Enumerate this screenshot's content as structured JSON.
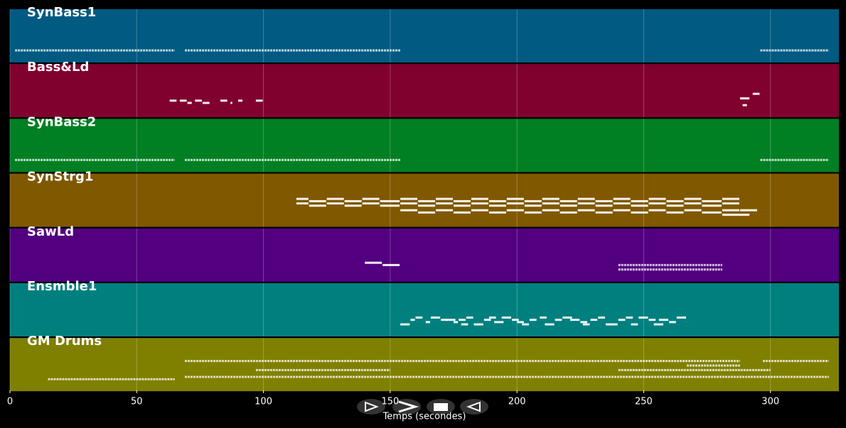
{
  "chart_data": {
    "type": "pianoroll",
    "xlabel": "Temps (secondes)",
    "xlim": [
      0,
      327
    ],
    "xticks": [
      0,
      50,
      100,
      150,
      200,
      250,
      300
    ],
    "grid": true,
    "tracks": [
      {
        "name": "SynBass1",
        "color": "#005a82",
        "runs": [
          [
            2,
            65,
            40
          ],
          [
            69,
            154,
            40
          ],
          [
            296,
            323,
            40
          ]
        ],
        "notes": []
      },
      {
        "name": "Bass&Ld",
        "color": "#80002e",
        "runs": [],
        "notes": [
          [
            63,
            66,
            50
          ],
          [
            67,
            70,
            50
          ],
          [
            70,
            72,
            49
          ],
          [
            73,
            76,
            50
          ],
          [
            76,
            79,
            49
          ],
          [
            83,
            86,
            50
          ],
          [
            87,
            88,
            49
          ],
          [
            90,
            92,
            50
          ],
          [
            97,
            100,
            50
          ],
          [
            288,
            292,
            51
          ],
          [
            289,
            291,
            48
          ],
          [
            293,
            296,
            53
          ]
        ]
      },
      {
        "name": "SynBass2",
        "color": "#007f23",
        "runs": [
          [
            2,
            65,
            40
          ],
          [
            69,
            154,
            40
          ],
          [
            296,
            323,
            40
          ]
        ],
        "notes": []
      },
      {
        "name": "SynStrg1",
        "color": "#805800",
        "runs": [],
        "notes": [
          [
            113,
            118,
            68,
            66
          ],
          [
            118,
            125,
            67,
            65
          ],
          [
            125,
            132,
            68,
            66
          ],
          [
            132,
            139,
            67,
            65
          ],
          [
            139,
            146,
            68,
            66
          ],
          [
            146,
            154,
            67,
            65
          ],
          [
            154,
            161,
            68,
            66,
            63
          ],
          [
            161,
            168,
            67,
            65,
            62
          ],
          [
            168,
            175,
            68,
            66,
            63
          ],
          [
            175,
            182,
            67,
            65,
            62
          ],
          [
            182,
            189,
            68,
            66,
            63
          ],
          [
            189,
            196,
            67,
            65,
            62
          ],
          [
            196,
            203,
            68,
            66,
            63
          ],
          [
            203,
            210,
            67,
            65,
            62
          ],
          [
            210,
            217,
            68,
            66,
            63
          ],
          [
            217,
            224,
            67,
            65,
            62
          ],
          [
            224,
            231,
            68,
            66,
            63
          ],
          [
            231,
            238,
            67,
            65,
            62
          ],
          [
            238,
            245,
            68,
            66,
            63
          ],
          [
            245,
            252,
            67,
            65,
            62
          ],
          [
            252,
            259,
            68,
            66,
            63
          ],
          [
            259,
            266,
            67,
            65,
            62
          ],
          [
            266,
            273,
            68,
            66,
            63
          ],
          [
            273,
            281,
            67,
            65,
            62
          ],
          [
            281,
            288,
            68,
            66,
            63
          ],
          [
            288,
            295,
            63
          ],
          [
            281,
            292,
            61
          ]
        ]
      },
      {
        "name": "SawLd",
        "color": "#52007f",
        "runs": [
          [
            240,
            281,
            66
          ],
          [
            240,
            281,
            64
          ]
        ],
        "notes": [
          [
            140,
            147,
            67
          ],
          [
            147,
            154,
            66
          ]
        ]
      },
      {
        "name": "Ensmble1",
        "color": "#007f7f",
        "runs": [],
        "notes": [
          [
            154,
            158,
            60
          ],
          [
            158,
            160,
            62
          ],
          [
            160,
            163,
            63
          ],
          [
            164,
            166,
            61
          ],
          [
            166,
            170,
            63
          ],
          [
            170,
            173,
            62
          ],
          [
            172,
            176,
            62
          ],
          [
            175,
            177,
            61
          ],
          [
            177,
            180,
            62
          ],
          [
            178,
            181,
            60
          ],
          [
            180,
            183,
            63
          ],
          [
            183,
            187,
            60
          ],
          [
            187,
            190,
            62
          ],
          [
            189,
            192,
            63
          ],
          [
            191,
            195,
            61
          ],
          [
            194,
            198,
            63
          ],
          [
            198,
            201,
            62
          ],
          [
            200,
            203,
            61
          ],
          [
            202,
            205,
            60
          ],
          [
            205,
            208,
            62
          ],
          [
            209,
            212,
            63
          ],
          [
            211,
            215,
            60
          ],
          [
            215,
            218,
            62
          ],
          [
            218,
            222,
            63
          ],
          [
            221,
            225,
            62
          ],
          [
            225,
            228,
            61
          ],
          [
            226,
            229,
            60
          ],
          [
            229,
            232,
            62
          ],
          [
            232,
            235,
            63
          ],
          [
            235,
            240,
            60
          ],
          [
            240,
            243,
            62
          ],
          [
            243,
            246,
            63
          ],
          [
            245,
            248,
            60
          ],
          [
            248,
            252,
            63
          ],
          [
            252,
            255,
            62
          ],
          [
            254,
            258,
            60
          ],
          [
            256,
            260,
            62
          ],
          [
            260,
            263,
            61
          ],
          [
            263,
            267,
            63
          ]
        ]
      },
      {
        "name": "GM Drums",
        "color": "#7f7f00",
        "runs": [
          [
            69,
            288,
            44
          ],
          [
            297,
            323,
            44
          ],
          [
            267,
            288,
            42
          ],
          [
            97,
            150,
            40
          ],
          [
            240,
            300,
            40
          ],
          [
            69,
            323,
            37
          ],
          [
            15,
            65,
            36
          ]
        ],
        "notes": []
      }
    ]
  }
}
